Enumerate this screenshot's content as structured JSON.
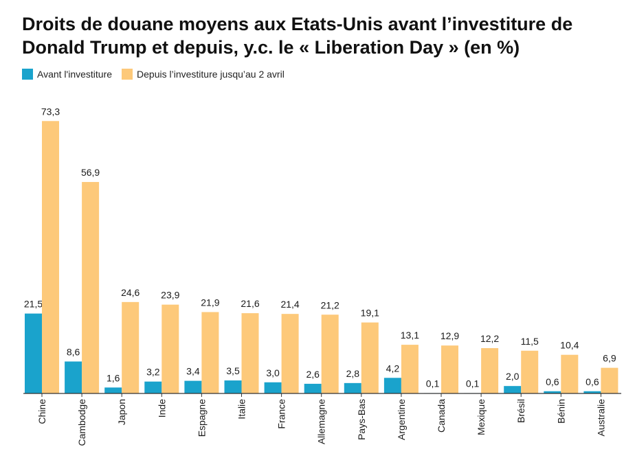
{
  "chart_data": {
    "type": "bar",
    "title": "Droits de douane moyens aux Etats-Unis avant l’investiture de Donald Trump et depuis, y.c. le « Liberation Day » (en %)",
    "categories": [
      "Chine",
      "Cambodge",
      "Japon",
      "Inde",
      "Espagne",
      "Italie",
      "France",
      "Allemagne",
      "Pays-Bas",
      "Argentine",
      "Canada",
      "Mexique",
      "Brésil",
      "Bénin",
      "Australie"
    ],
    "series": [
      {
        "name": "Avant l'investiture",
        "color": "#1aa3cc",
        "values": [
          21.5,
          8.6,
          1.6,
          3.2,
          3.4,
          3.5,
          3.0,
          2.6,
          2.8,
          4.2,
          0.1,
          0.1,
          2.0,
          0.6,
          0.6
        ],
        "labels": [
          "21,5",
          "8,6",
          "1,6",
          "3,2",
          "3,4",
          "3,5",
          "3,0",
          "2,6",
          "2,8",
          "4,2",
          "0,1",
          "0,1",
          "2,0",
          "0,6",
          "0,6"
        ]
      },
      {
        "name": "Depuis l’investiture jusqu’au 2 avril",
        "color": "#fdc97a",
        "values": [
          73.3,
          56.9,
          24.6,
          23.9,
          21.9,
          21.6,
          21.4,
          21.2,
          19.1,
          13.1,
          12.9,
          12.2,
          11.5,
          10.4,
          6.9
        ],
        "labels": [
          "73,3",
          "56,9",
          "24,6",
          "23,9",
          "21,9",
          "21,6",
          "21,4",
          "21,2",
          "19,1",
          "13,1",
          "12,9",
          "12,2",
          "11,5",
          "10,4",
          "6,9"
        ]
      }
    ],
    "xlabel": "",
    "ylabel": "",
    "ylim": [
      0,
      80
    ],
    "grid": false,
    "legend": "top-left"
  }
}
